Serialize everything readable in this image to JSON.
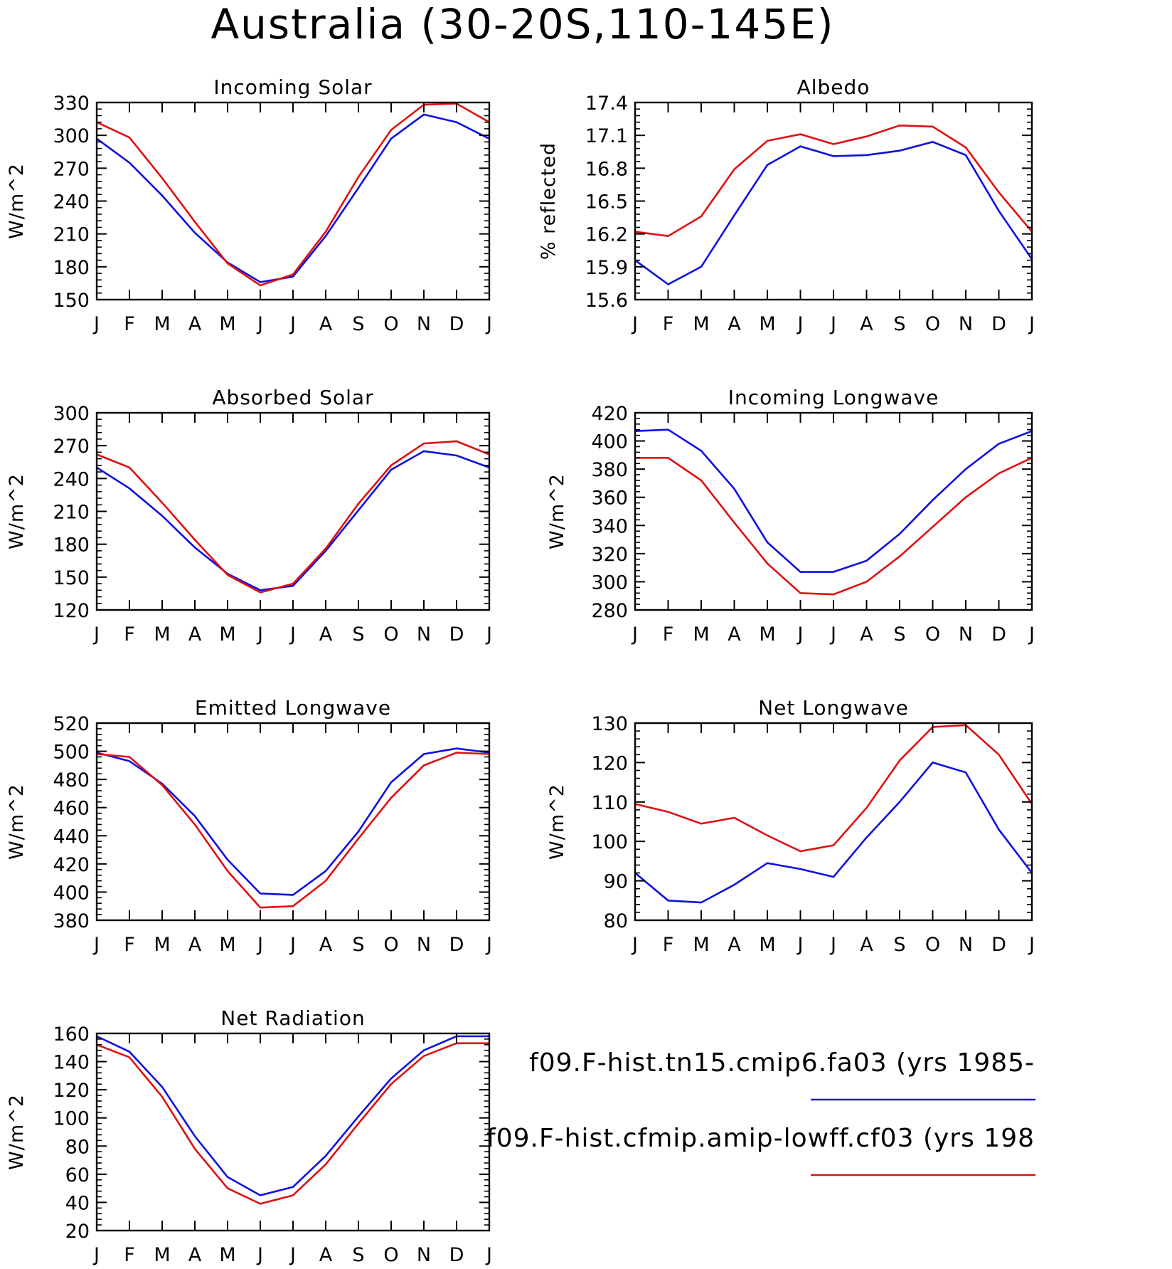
{
  "page_title": "Australia (30-20S,110-145E)",
  "legend": [
    {
      "label": "f09.F-hist.tn15.cmip6.fa03 (yrs 1985-",
      "color": "#1010e0"
    },
    {
      "label": "f09.F-hist.cfmip.amip-lowff.cf03 (yrs 198",
      "color": "#e01010"
    }
  ],
  "chart_data": [
    {
      "type": "line",
      "title": "Incoming Solar",
      "ylabel": "W/m^2",
      "x": [
        "J",
        "F",
        "M",
        "A",
        "M",
        "J",
        "J",
        "A",
        "S",
        "O",
        "N",
        "D",
        "J"
      ],
      "ylim": [
        150,
        330
      ],
      "yticks": [
        150,
        180,
        210,
        240,
        270,
        300,
        330
      ],
      "series": [
        {
          "color": "#1010e0",
          "values": [
            297,
            275,
            245,
            211,
            184,
            166,
            171,
            208,
            252,
            297,
            319,
            312,
            297
          ]
        },
        {
          "color": "#e01010",
          "values": [
            312,
            298,
            261,
            221,
            183,
            163,
            173,
            212,
            262,
            305,
            328,
            329,
            312
          ]
        }
      ]
    },
    {
      "type": "line",
      "title": "Albedo",
      "ylabel": "% reflected",
      "x": [
        "J",
        "F",
        "M",
        "A",
        "M",
        "J",
        "J",
        "A",
        "S",
        "O",
        "N",
        "D",
        "J"
      ],
      "ylim": [
        15.6,
        17.4
      ],
      "yticks": [
        15.6,
        15.9,
        16.2,
        16.5,
        16.8,
        17.1,
        17.4
      ],
      "series": [
        {
          "color": "#1010e0",
          "values": [
            15.96,
            15.74,
            15.9,
            16.37,
            16.83,
            17.0,
            16.91,
            16.92,
            16.96,
            17.04,
            16.92,
            16.41,
            15.97
          ]
        },
        {
          "color": "#e01010",
          "values": [
            16.22,
            16.18,
            16.36,
            16.79,
            17.05,
            17.11,
            17.02,
            17.09,
            17.19,
            17.18,
            16.99,
            16.58,
            16.22
          ]
        }
      ]
    },
    {
      "type": "line",
      "title": "Absorbed Solar",
      "ylabel": "W/m^2",
      "x": [
        "J",
        "F",
        "M",
        "A",
        "M",
        "J",
        "J",
        "A",
        "S",
        "O",
        "N",
        "D",
        "J"
      ],
      "ylim": [
        120,
        300
      ],
      "yticks": [
        120,
        150,
        180,
        210,
        240,
        270,
        300
      ],
      "series": [
        {
          "color": "#1010e0",
          "values": [
            250,
            231,
            206,
            177,
            153,
            138,
            142,
            174,
            211,
            248,
            265,
            261,
            250
          ]
        },
        {
          "color": "#e01010",
          "values": [
            262,
            250,
            218,
            184,
            152,
            136,
            144,
            176,
            217,
            252,
            272,
            274,
            262
          ]
        }
      ]
    },
    {
      "type": "line",
      "title": "Incoming Longwave",
      "ylabel": "W/m^2",
      "x": [
        "J",
        "F",
        "M",
        "A",
        "M",
        "J",
        "J",
        "A",
        "S",
        "O",
        "N",
        "D",
        "J"
      ],
      "ylim": [
        280,
        420
      ],
      "yticks": [
        280,
        300,
        320,
        340,
        360,
        380,
        400,
        420
      ],
      "series": [
        {
          "color": "#1010e0",
          "values": [
            407,
            408,
            393,
            366,
            328,
            307,
            307,
            315,
            334,
            358,
            380,
            398,
            407
          ]
        },
        {
          "color": "#e01010",
          "values": [
            388,
            388,
            372,
            342,
            313,
            292,
            291,
            300,
            318,
            339,
            360,
            377,
            388
          ]
        }
      ]
    },
    {
      "type": "line",
      "title": "Emitted Longwave",
      "ylabel": "W/m^2",
      "x": [
        "J",
        "F",
        "M",
        "A",
        "M",
        "J",
        "J",
        "A",
        "S",
        "O",
        "N",
        "D",
        "J"
      ],
      "ylim": [
        380,
        520
      ],
      "yticks": [
        380,
        400,
        420,
        440,
        460,
        480,
        500,
        520
      ],
      "series": [
        {
          "color": "#1010e0",
          "values": [
            499,
            493,
            477,
            454,
            423,
            399,
            398,
            415,
            443,
            478,
            498,
            502,
            499
          ]
        },
        {
          "color": "#e01010",
          "values": [
            498,
            496,
            476,
            448,
            415,
            389,
            390,
            408,
            438,
            467,
            490,
            499,
            498
          ]
        }
      ]
    },
    {
      "type": "line",
      "title": "Net Longwave",
      "ylabel": "W/m^2",
      "x": [
        "J",
        "F",
        "M",
        "A",
        "M",
        "J",
        "J",
        "A",
        "S",
        "O",
        "N",
        "D",
        "J"
      ],
      "ylim": [
        80,
        130
      ],
      "yticks": [
        80,
        90,
        100,
        110,
        120,
        130
      ],
      "series": [
        {
          "color": "#1010e0",
          "values": [
            92,
            85,
            84.5,
            89,
            94.5,
            93,
            91,
            101,
            110,
            120,
            117.5,
            103,
            92
          ]
        },
        {
          "color": "#e01010",
          "values": [
            109.5,
            107.5,
            104.5,
            106,
            101.5,
            97.5,
            99,
            108.5,
            120.5,
            129,
            129.5,
            122,
            109.5
          ]
        }
      ]
    },
    {
      "type": "line",
      "title": "Net Radiation",
      "ylabel": "W/m^2",
      "x": [
        "J",
        "F",
        "M",
        "A",
        "M",
        "J",
        "J",
        "A",
        "S",
        "O",
        "N",
        "D",
        "J"
      ],
      "ylim": [
        20,
        160
      ],
      "yticks": [
        20,
        40,
        60,
        80,
        100,
        120,
        140,
        160
      ],
      "series": [
        {
          "color": "#1010e0",
          "values": [
            158,
            147,
            122,
            87,
            58,
            45,
            51,
            73,
            101,
            128,
            148,
            158,
            158
          ]
        },
        {
          "color": "#e01010",
          "values": [
            152,
            143,
            115,
            78,
            50,
            39,
            45,
            67,
            96,
            124,
            144,
            153,
            153
          ]
        }
      ]
    }
  ]
}
